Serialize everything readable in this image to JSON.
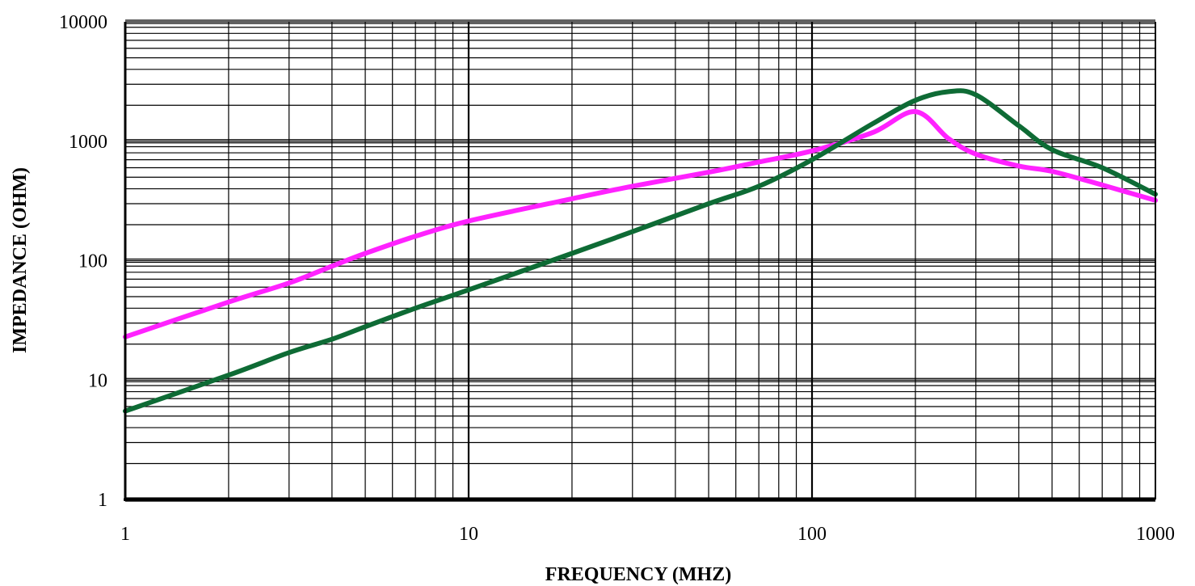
{
  "chart_data": {
    "type": "line",
    "title": "",
    "xlabel": "FREQUENCY (MHZ)",
    "ylabel": "IMPEDANCE (OHM)",
    "x_scale": "log",
    "y_scale": "log",
    "xlim": [
      1,
      1000
    ],
    "ylim": [
      1,
      10000
    ],
    "grid": true,
    "x_ticks": [
      "1",
      "10",
      "100",
      "1000"
    ],
    "y_ticks": [
      "1",
      "10",
      "100",
      "1000",
      "10000"
    ],
    "series": [
      {
        "color": "#ff22ff",
        "x": [
          1,
          2,
          3,
          4,
          5,
          7,
          10,
          20,
          30,
          50,
          70,
          100,
          150,
          200,
          250,
          300,
          400,
          500,
          700,
          1000
        ],
        "values": [
          23,
          45,
          65,
          90,
          115,
          160,
          215,
          330,
          420,
          550,
          670,
          830,
          1180,
          1770,
          1050,
          780,
          620,
          560,
          430,
          320
        ]
      },
      {
        "color": "#0e6b35",
        "x": [
          1,
          2,
          3,
          4,
          5,
          7,
          10,
          20,
          30,
          50,
          70,
          100,
          150,
          200,
          250,
          300,
          400,
          500,
          700,
          1000
        ],
        "values": [
          5.5,
          11,
          17,
          22,
          28,
          40,
          57,
          115,
          175,
          300,
          420,
          700,
          1400,
          2200,
          2600,
          2450,
          1350,
          850,
          600,
          360
        ]
      }
    ]
  }
}
